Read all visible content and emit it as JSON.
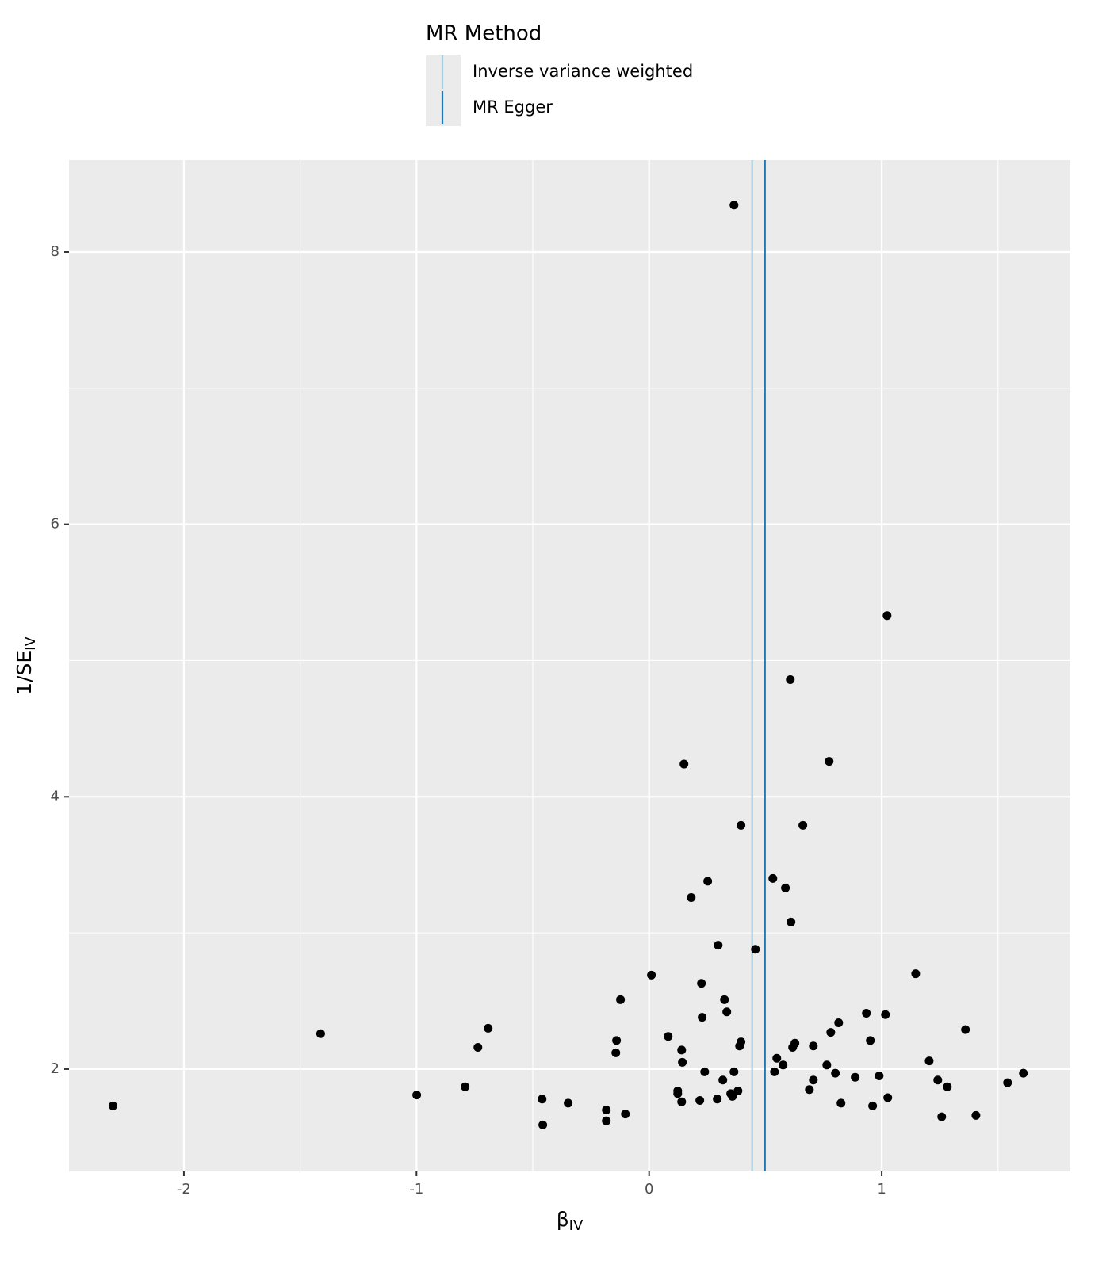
{
  "chart_data": {
    "type": "scatter",
    "legend_title": "MR Method",
    "x_label": {
      "text": "β",
      "subscript": "IV"
    },
    "y_label": {
      "text": "1/SE",
      "subscript": "IV"
    },
    "xlim": [
      -2.494,
      1.811
    ],
    "ylim": [
      1.249,
      8.675
    ],
    "xticks": [
      -2,
      -1,
      0,
      1
    ],
    "yticks": [
      2,
      4,
      6,
      8
    ],
    "x_minor_ticks": [
      -1.5,
      -0.5,
      0.5,
      1.5
    ],
    "y_minor_ticks": [
      3,
      5,
      7
    ],
    "grid": true,
    "color": "#000000",
    "lines": [
      {
        "name": "Inverse variance weighted",
        "color": "#a6cee3",
        "value": 0.443
      },
      {
        "name": "MR Egger",
        "color": "#1f78b4",
        "value": 0.498
      }
    ],
    "x": [
      0.365,
      1.023,
      0.607,
      0.774,
      0.15,
      0.395,
      0.661,
      0.532,
      0.252,
      0.586,
      0.181,
      0.61,
      0.297,
      0.457,
      1.146,
      0.01,
      0.225,
      -0.123,
      0.324,
      0.334,
      0.228,
      0.934,
      1.016,
      0.815,
      -1.412,
      -0.692,
      1.36,
      0.781,
      0.082,
      -0.14,
      0.395,
      0.951,
      0.627,
      0.389,
      -0.736,
      0.617,
      0.706,
      0.14,
      -0.143,
      0.143,
      1.204,
      0.549,
      0.576,
      0.764,
      0.239,
      0.365,
      0.539,
      0.801,
      1.609,
      0.886,
      0.989,
      0.317,
      0.706,
      1.241,
      1.541,
      -0.791,
      1.282,
      0.689,
      0.123,
      0.382,
      0.123,
      0.351,
      -0.999,
      0.358,
      1.026,
      0.293,
      -0.46,
      0.218,
      0.14,
      0.825,
      -0.348,
      -2.305,
      0.961,
      -0.184,
      -0.102,
      1.405,
      1.258,
      -0.184,
      -0.457
    ],
    "values": [
      8.345,
      5.33,
      4.86,
      4.26,
      4.24,
      3.79,
      3.79,
      3.4,
      3.38,
      3.33,
      3.26,
      3.08,
      2.91,
      2.88,
      2.7,
      2.69,
      2.63,
      2.51,
      2.51,
      2.42,
      2.38,
      2.41,
      2.4,
      2.34,
      2.26,
      2.3,
      2.29,
      2.27,
      2.24,
      2.21,
      2.2,
      2.21,
      2.19,
      2.17,
      2.16,
      2.16,
      2.17,
      2.14,
      2.12,
      2.05,
      2.06,
      2.08,
      2.03,
      2.03,
      1.98,
      1.98,
      1.98,
      1.97,
      1.97,
      1.94,
      1.95,
      1.92,
      1.92,
      1.92,
      1.9,
      1.87,
      1.87,
      1.85,
      1.84,
      1.84,
      1.82,
      1.82,
      1.81,
      1.8,
      1.79,
      1.78,
      1.78,
      1.77,
      1.76,
      1.75,
      1.75,
      1.73,
      1.73,
      1.7,
      1.67,
      1.66,
      1.65,
      1.62,
      1.59
    ]
  }
}
